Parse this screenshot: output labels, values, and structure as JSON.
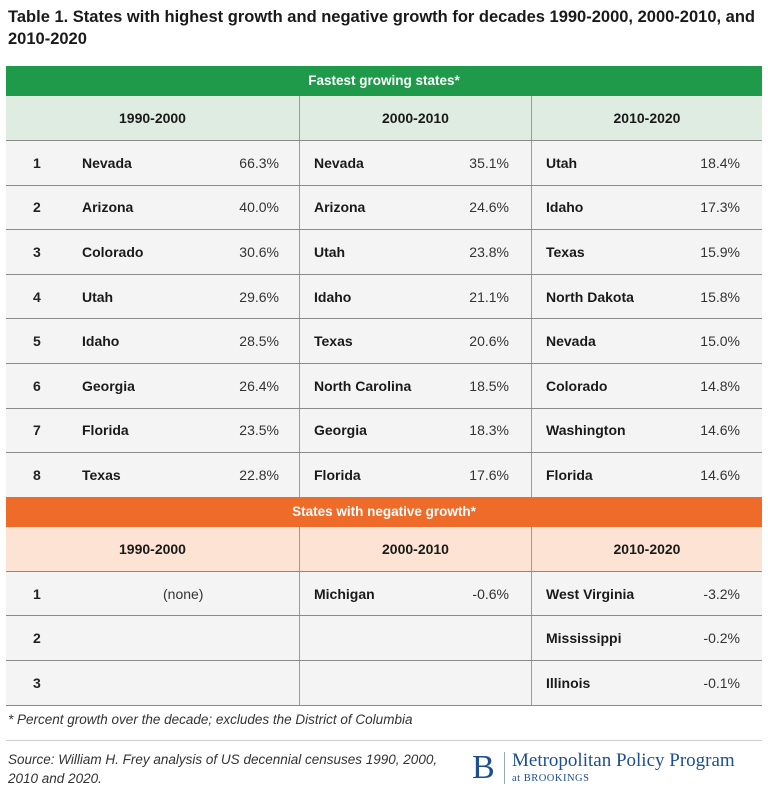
{
  "title": "Table 1. States with highest growth and negative growth for decades 1990-2000, 2000-2010, and 2010-2020",
  "fastest": {
    "header": "Fastest growing states*",
    "decades": [
      "1990-2000",
      "2000-2010",
      "2010-2020"
    ],
    "rows": [
      {
        "rank": "1",
        "d1": {
          "state": "Nevada",
          "pct": "66.3%"
        },
        "d2": {
          "state": "Nevada",
          "pct": "35.1%"
        },
        "d3": {
          "state": "Utah",
          "pct": "18.4%"
        }
      },
      {
        "rank": "2",
        "d1": {
          "state": "Arizona",
          "pct": "40.0%"
        },
        "d2": {
          "state": "Arizona",
          "pct": "24.6%"
        },
        "d3": {
          "state": "Idaho",
          "pct": "17.3%"
        }
      },
      {
        "rank": "3",
        "d1": {
          "state": "Colorado",
          "pct": "30.6%"
        },
        "d2": {
          "state": "Utah",
          "pct": "23.8%"
        },
        "d3": {
          "state": "Texas",
          "pct": "15.9%"
        }
      },
      {
        "rank": "4",
        "d1": {
          "state": "Utah",
          "pct": "29.6%"
        },
        "d2": {
          "state": "Idaho",
          "pct": "21.1%"
        },
        "d3": {
          "state": "North Dakota",
          "pct": "15.8%"
        }
      },
      {
        "rank": "5",
        "d1": {
          "state": "Idaho",
          "pct": "28.5%"
        },
        "d2": {
          "state": "Texas",
          "pct": "20.6%"
        },
        "d3": {
          "state": "Nevada",
          "pct": "15.0%"
        }
      },
      {
        "rank": "6",
        "d1": {
          "state": "Georgia",
          "pct": "26.4%"
        },
        "d2": {
          "state": "North Carolina",
          "pct": "18.5%"
        },
        "d3": {
          "state": "Colorado",
          "pct": "14.8%"
        }
      },
      {
        "rank": "7",
        "d1": {
          "state": "Florida",
          "pct": "23.5%"
        },
        "d2": {
          "state": "Georgia",
          "pct": "18.3%"
        },
        "d3": {
          "state": "Washington",
          "pct": "14.6%"
        }
      },
      {
        "rank": "8",
        "d1": {
          "state": "Texas",
          "pct": "22.8%"
        },
        "d2": {
          "state": "Florida",
          "pct": "17.6%"
        },
        "d3": {
          "state": "Florida",
          "pct": "14.6%"
        }
      }
    ]
  },
  "negative": {
    "header": "States with negative growth*",
    "decades": [
      "1990-2000",
      "2000-2010",
      "2010-2020"
    ],
    "none_label": "(none)",
    "rows": [
      {
        "rank": "1",
        "d2": {
          "state": "Michigan",
          "pct": "-0.6%"
        },
        "d3": {
          "state": "West Virginia",
          "pct": "-3.2%"
        }
      },
      {
        "rank": "2",
        "d2": {
          "state": "",
          "pct": ""
        },
        "d3": {
          "state": "Mississippi",
          "pct": "-0.2%"
        }
      },
      {
        "rank": "3",
        "d2": {
          "state": "",
          "pct": ""
        },
        "d3": {
          "state": "Illinois",
          "pct": "-0.1%"
        }
      }
    ]
  },
  "footnote": "* Percent growth over the decade; excludes the District of Columbia",
  "source": "Source: William H. Frey analysis of US decennial censuses 1990, 2000, 2010 and 2020.",
  "logo": {
    "mark": "B",
    "name": "Metropolitan Policy Program",
    "sub": "at BROOKINGS"
  },
  "colors": {
    "green": "#1f9a4a",
    "orange": "#ef6b2a",
    "green_light": "#dfece1",
    "orange_light": "#fce3d3"
  }
}
